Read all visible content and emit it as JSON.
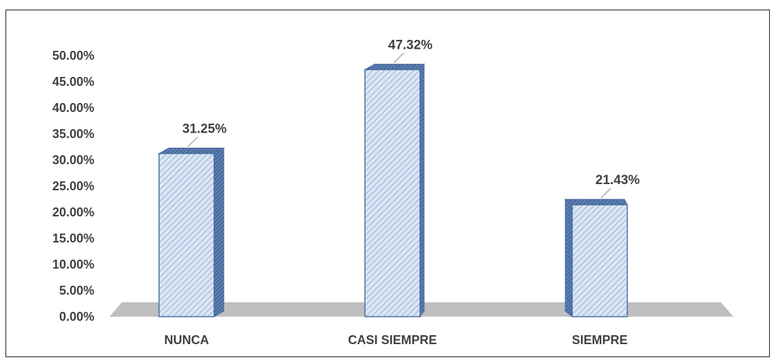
{
  "chart_data": {
    "type": "bar",
    "style": "3d-column",
    "title": "",
    "xlabel": "",
    "ylabel": "",
    "categories": [
      "NUNCA",
      "CASI SIEMPRE",
      "SIEMPRE"
    ],
    "values": [
      31.25,
      47.32,
      21.43
    ],
    "value_labels": [
      "31.25%",
      "47.32%",
      "21.43%"
    ],
    "ylim": [
      0,
      50
    ],
    "yticks": [
      0,
      5,
      10,
      15,
      20,
      25,
      30,
      35,
      40,
      45,
      50
    ],
    "ytick_labels": [
      "0.00%",
      "5.00%",
      "10.00%",
      "15.00%",
      "20.00%",
      "25.00%",
      "30.00%",
      "35.00%",
      "40.00%",
      "45.00%",
      "50.00%"
    ],
    "grid": false,
    "legend": "none",
    "colors": {
      "bar_fill": "#dbe6f4",
      "bar_hatch": "#7f9fcc",
      "bar_side": "#3f5f8f",
      "bar_edge": "#4a6fa5",
      "floor": "#bfbfbf"
    }
  }
}
